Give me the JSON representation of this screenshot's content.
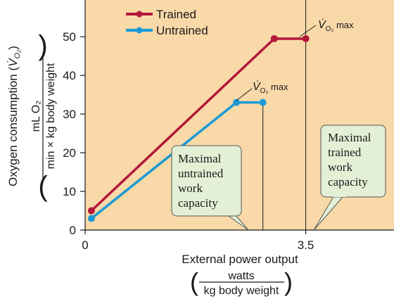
{
  "chart_data": {
    "type": "line",
    "x_ticks": [
      {
        "value": 0,
        "label": "0"
      },
      {
        "value": 3.5,
        "label": "3.5"
      }
    ],
    "y_ticks": [
      0,
      10,
      20,
      30,
      40,
      50
    ],
    "xlim": [
      0,
      4.9
    ],
    "ylim": [
      0,
      59.5
    ],
    "xlabel": "External power output",
    "xlabel_unit_numerator": "watts",
    "xlabel_unit_denominator": "kg body weight",
    "ylabel": "Oxygen consumption (V̇O₂)",
    "ylabel_unit_numerator": "mL O₂",
    "ylabel_unit_denominator": "min × kg body weight",
    "series": [
      {
        "name": "Trained",
        "color": "#b3173a",
        "points": [
          [
            0.1,
            5
          ],
          [
            3.0,
            49.5
          ],
          [
            3.5,
            49.5
          ]
        ]
      },
      {
        "name": "Untrained",
        "color": "#1a9ad6",
        "points": [
          [
            0.1,
            3
          ],
          [
            2.4,
            33
          ],
          [
            2.82,
            33
          ]
        ]
      }
    ],
    "legend_position": "top-left",
    "background_color": "#f9d9a8",
    "grid": false,
    "annotations": {
      "vo2max_trained": "V̇O₂ max",
      "vo2max_untrained": "V̇O₂ max",
      "untrained_box": [
        "Maximal",
        "untrained",
        "work",
        "capacity"
      ],
      "trained_box": [
        "Maximal",
        "trained",
        "work",
        "capacity"
      ],
      "callout_fill": "#e3f0d6"
    }
  }
}
